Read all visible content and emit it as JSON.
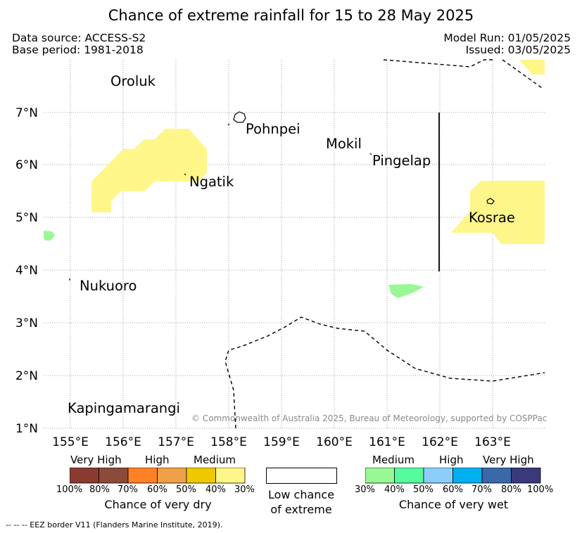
{
  "title": "Chance of extreme rainfall for 15 to 28 May 2025",
  "meta": {
    "data_source": "Data source: ACCESS-S2",
    "base_period": "Base period: 1981-2018",
    "model_run": "Model Run: 01/05/2025",
    "issued": "Issued: 03/05/2025"
  },
  "map": {
    "lon_ticks": [
      "155°E",
      "156°E",
      "157°E",
      "158°E",
      "159°E",
      "160°E",
      "161°E",
      "162°E",
      "163°E"
    ],
    "lat_ticks": [
      "7°N",
      "6°N",
      "5°N",
      "4°N",
      "3°N",
      "2°N",
      "1°N"
    ],
    "places": [
      "Oroluk",
      "Pohnpei",
      "Mokil",
      "Pingelap",
      "Ngatik",
      "Kosrae",
      "Nukuoro",
      "Kapingamarangi"
    ],
    "copyright": "© Commonwealth of Australia 2025, Bureau of Meteorology, supported by COSPPac"
  },
  "legend": {
    "dry": {
      "categories": [
        "Very High",
        "High",
        "Medium"
      ],
      "colors": [
        "#8b3a30",
        "#8b4a3a",
        "#ff8126",
        "#f0a048",
        "#f0c800",
        "#fff68a"
      ],
      "ticks": [
        "100%",
        "80%",
        "70%",
        "60%",
        "50%",
        "40%",
        "30%"
      ],
      "caption": "Chance of very dry"
    },
    "low": {
      "caption_line1": "Low chance",
      "caption_line2": "of extreme"
    },
    "wet": {
      "categories": [
        "Medium",
        "High",
        "Very High"
      ],
      "colors": [
        "#98f994",
        "#57fb9f",
        "#8ccefb",
        "#00b0f0",
        "#3a68a8",
        "#3a3a7a"
      ],
      "ticks": [
        "30%",
        "40%",
        "50%",
        "60%",
        "70%",
        "80%",
        "100%"
      ],
      "caption": "Chance of very wet"
    }
  },
  "footnote": "-- -- -- EEZ border V11 (Flanders Marine Institute, 2019)."
}
